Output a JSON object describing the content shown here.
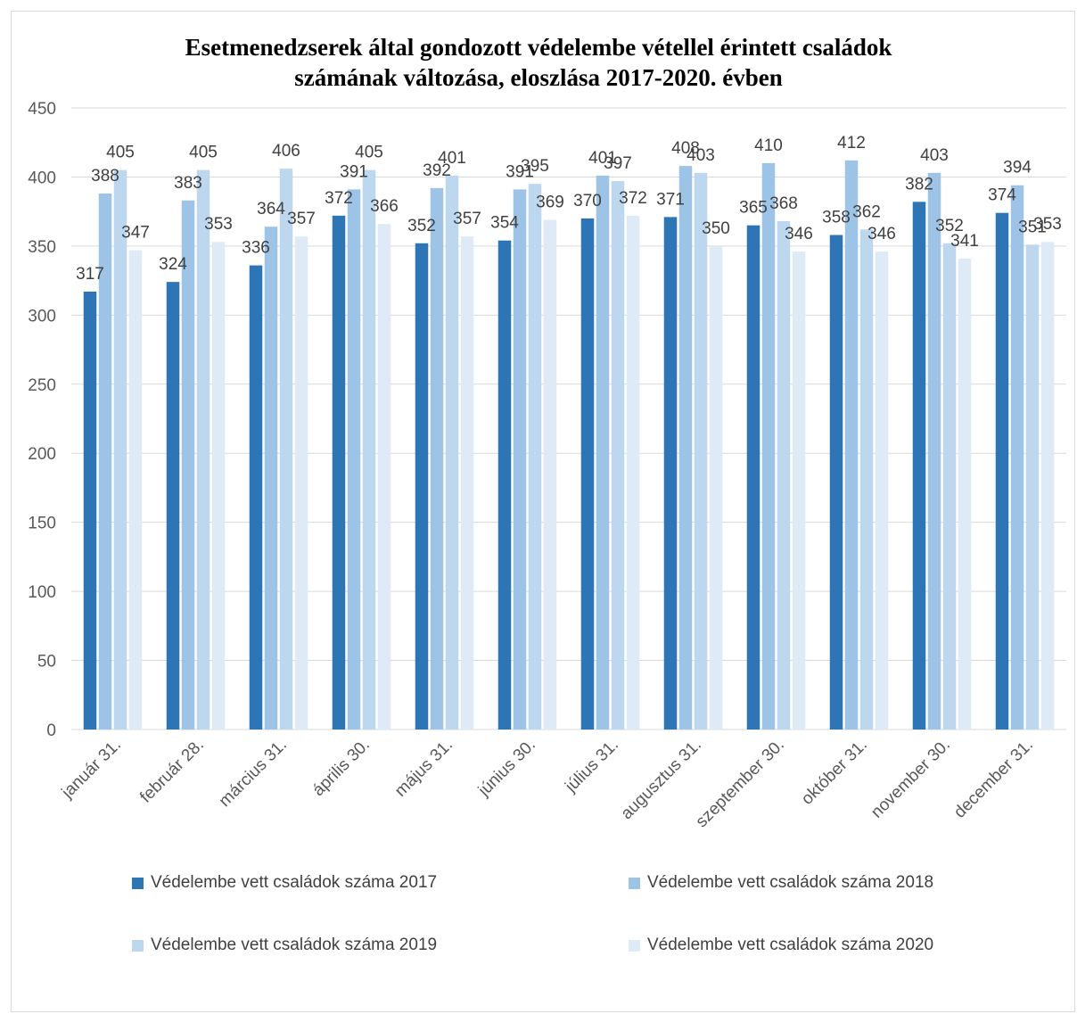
{
  "chart_data": {
    "type": "bar",
    "title": [
      "Esetmenedzserek által gondozott védelembe vétellel érintett családok",
      "számának változása, eloszlása 2017-2020. évben"
    ],
    "categories": [
      "január 31.",
      "február 28.",
      "március 31.",
      "április 30.",
      "május 31.",
      "június 30.",
      "július 31.",
      "augusztus 31.",
      "szeptember 30.",
      "október 31.",
      "november 30.",
      "december 31."
    ],
    "series": [
      {
        "name": "Védelembe vett családok száma 2017",
        "color": "#2e75b6",
        "values": [
          317,
          324,
          336,
          372,
          352,
          354,
          370,
          371,
          365,
          358,
          382,
          374
        ]
      },
      {
        "name": "Védelembe vett családok száma 2018",
        "color": "#9dc3e6",
        "values": [
          388,
          383,
          364,
          391,
          392,
          391,
          401,
          408,
          410,
          412,
          403,
          394
        ]
      },
      {
        "name": "Védelembe vett családok száma 2019",
        "color": "#bdd7ee",
        "values": [
          405,
          405,
          406,
          405,
          401,
          395,
          397,
          403,
          368,
          362,
          352,
          351
        ]
      },
      {
        "name": "Védelembe vett családok száma 2020",
        "color": "#deebf7",
        "values": [
          347,
          353,
          357,
          366,
          357,
          369,
          372,
          350,
          346,
          346,
          341,
          353
        ]
      }
    ],
    "ylim": [
      0,
      450
    ],
    "yticks": [
      0,
      50,
      100,
      150,
      200,
      250,
      300,
      350,
      400,
      450
    ],
    "grid": true,
    "legend_position": "bottom"
  }
}
